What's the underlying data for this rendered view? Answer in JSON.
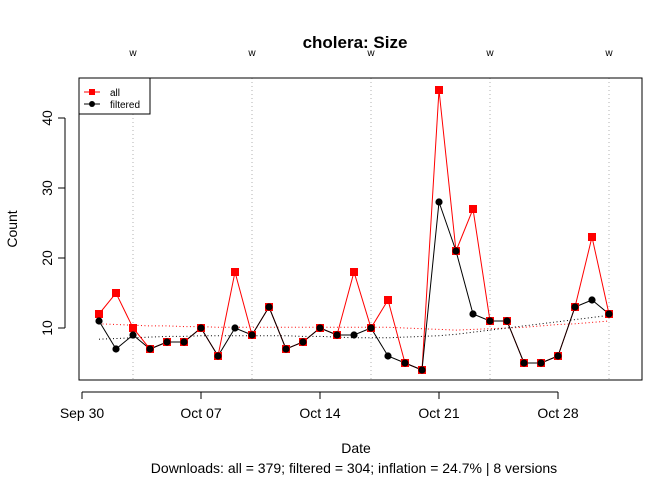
{
  "chart_data": {
    "type": "line",
    "title": "cholera: Size",
    "xlabel": "Date",
    "ylabel": "Count",
    "subtitle": "Downloads: all = 379; filtered = 304; inflation = 24.7% | 8 versions",
    "x": [
      "Oct 01",
      "Oct 02",
      "Oct 03",
      "Oct 04",
      "Oct 05",
      "Oct 06",
      "Oct 07",
      "Oct 08",
      "Oct 09",
      "Oct 10",
      "Oct 11",
      "Oct 12",
      "Oct 13",
      "Oct 14",
      "Oct 15",
      "Oct 16",
      "Oct 17",
      "Oct 18",
      "Oct 19",
      "Oct 20",
      "Oct 21",
      "Oct 22",
      "Oct 23",
      "Oct 24",
      "Oct 25",
      "Oct 26",
      "Oct 27",
      "Oct 28",
      "Oct 29",
      "Oct 30",
      "Oct 31"
    ],
    "series": [
      {
        "name": "all",
        "color": "#ff0000",
        "marker": "square",
        "values": [
          12,
          15,
          10,
          7,
          8,
          8,
          10,
          6,
          18,
          9,
          13,
          7,
          8,
          10,
          9,
          18,
          10,
          14,
          5,
          4,
          44,
          21,
          27,
          11,
          11,
          5,
          5,
          6,
          13,
          23,
          12
        ],
        "trend": [
          10.6,
          10.5,
          10.4,
          10.3,
          10.3,
          10.2,
          10.2,
          10.1,
          10.1,
          10.1,
          10.1,
          10.1,
          10.1,
          10.1,
          10.1,
          10.1,
          10.1,
          10.1,
          10.0,
          9.9,
          9.8,
          9.7,
          9.8,
          9.9,
          10.0,
          10.1,
          10.3,
          10.5,
          10.6,
          10.8,
          11.0
        ]
      },
      {
        "name": "filtered",
        "color": "#000000",
        "marker": "circle",
        "values": [
          11,
          7,
          9,
          7,
          8,
          8,
          10,
          6,
          10,
          9,
          13,
          7,
          8,
          10,
          9,
          9,
          10,
          6,
          5,
          4,
          28,
          21,
          12,
          11,
          11,
          5,
          5,
          6,
          13,
          14,
          12
        ],
        "trend": [
          8.4,
          8.5,
          8.6,
          8.7,
          8.8,
          8.8,
          8.9,
          8.9,
          8.9,
          8.9,
          8.9,
          8.9,
          8.8,
          8.8,
          8.7,
          8.6,
          8.6,
          8.6,
          8.7,
          8.8,
          8.9,
          9.1,
          9.4,
          9.7,
          10.0,
          10.3,
          10.6,
          10.9,
          11.2,
          11.5,
          11.8
        ]
      }
    ],
    "x_ticks": [
      "Sep 30",
      "Oct 07",
      "Oct 14",
      "Oct 21",
      "Oct 28"
    ],
    "y_ticks": [
      10,
      20,
      30,
      40
    ],
    "ylim": [
      3,
      45
    ],
    "release_marker_label": "w",
    "release_dates": [
      "Oct 03",
      "Oct 10",
      "Oct 17",
      "Oct 24",
      "Oct 31"
    ],
    "legend": {
      "position": "top-left",
      "entries": [
        "all",
        "filtered"
      ]
    },
    "grid": false
  }
}
